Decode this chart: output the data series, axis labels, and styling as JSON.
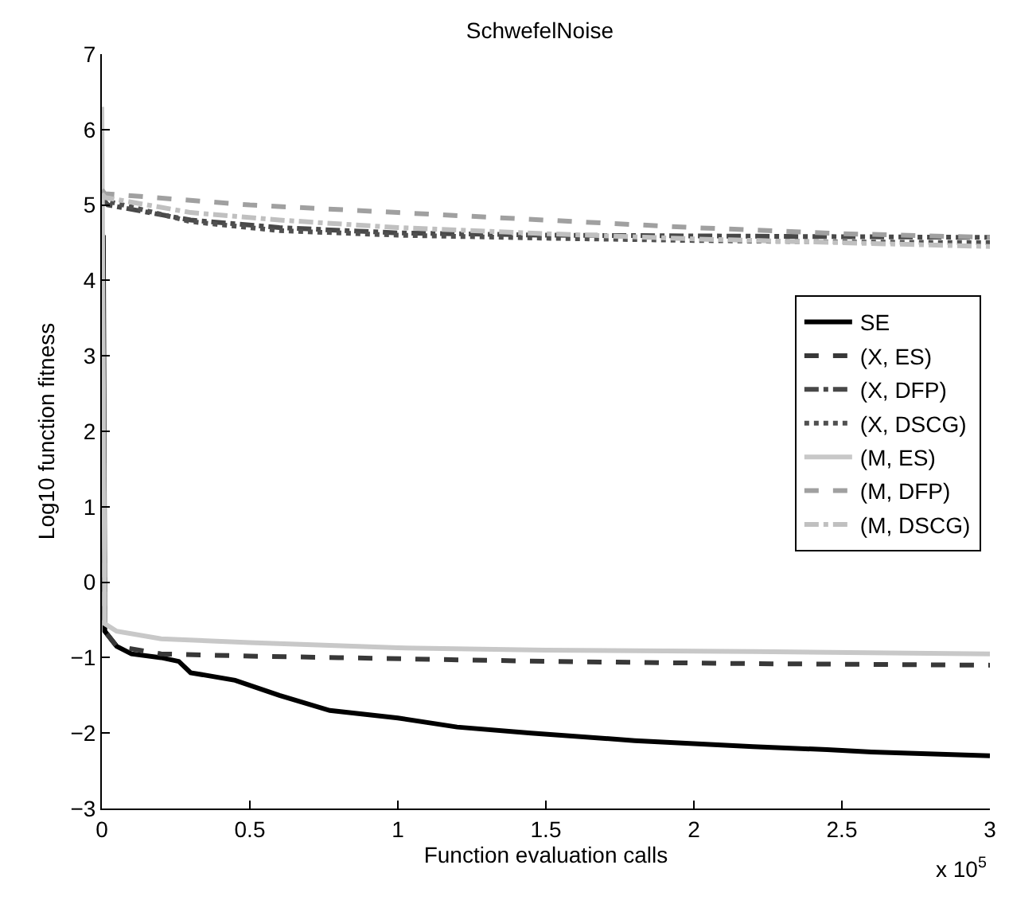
{
  "chart_data": {
    "type": "line",
    "title": "SchwefelNoise",
    "xlabel": "Function evaluation calls",
    "ylabel": "Log10 function fitness",
    "annotations": [
      "x 10$^{5}$"
    ],
    "xlim": [
      0,
      3
    ],
    "xticks": [
      0,
      0.5,
      1,
      1.5,
      2,
      2.5,
      3
    ],
    "ylim": [
      -3,
      7
    ],
    "yticks": [
      -3,
      -2,
      -1,
      0,
      1,
      2,
      3,
      4,
      5,
      6,
      7
    ],
    "grid": false,
    "legend": "right",
    "marker": "none",
    "series": [
      {
        "name": "SE",
        "color": "#000000",
        "line_style": "solid",
        "x": [
          0.005,
          0.01,
          0.05,
          0.1,
          0.2,
          0.26,
          0.3,
          0.45,
          0.6,
          0.77,
          1.0,
          1.2,
          1.45,
          1.8,
          2.2,
          2.45,
          2.6,
          3.0
        ],
        "values": [
          4.6,
          -0.65,
          -0.85,
          -0.95,
          -1.0,
          -1.05,
          -1.2,
          -1.3,
          -1.5,
          -1.7,
          -1.8,
          -1.92,
          -2.0,
          -2.1,
          -2.18,
          -2.22,
          -2.25,
          -2.3
        ]
      },
      {
        "name": "(X, ES)",
        "color": "#383838",
        "line_style": "dashed",
        "x": [
          0,
          0.01,
          0.05,
          0.2,
          0.5,
          0.8,
          1.5,
          2.2,
          3.0
        ],
        "values": [
          5.0,
          -0.65,
          -0.85,
          -0.95,
          -0.98,
          -1.0,
          -1.05,
          -1.08,
          -1.1
        ]
      },
      {
        "name": "(X, DFP)",
        "color": "#484848",
        "line_style": "dashdot",
        "x": [
          0,
          0.02,
          0.3,
          0.6,
          1.0,
          1.5,
          2.0,
          2.5,
          3.0
        ],
        "values": [
          5.1,
          5.0,
          4.8,
          4.7,
          4.63,
          4.6,
          4.59,
          4.58,
          4.57
        ]
      },
      {
        "name": "(X, DSCG)",
        "color": "#505050",
        "line_style": "dotted",
        "x": [
          0,
          0.02,
          0.3,
          0.6,
          1.0,
          1.5,
          2.0,
          2.5,
          3.0
        ],
        "values": [
          5.1,
          5.05,
          4.78,
          4.66,
          4.6,
          4.56,
          4.53,
          4.51,
          4.5
        ]
      },
      {
        "name": "(M, ES)",
        "color": "#c8c8c8",
        "line_style": "solid",
        "x": [
          0,
          0.01,
          0.05,
          0.2,
          0.5,
          1.0,
          1.5,
          2.2,
          3.0
        ],
        "values": [
          6.3,
          -0.55,
          -0.65,
          -0.75,
          -0.8,
          -0.87,
          -0.9,
          -0.92,
          -0.95
        ]
      },
      {
        "name": "(M, DFP)",
        "color": "#a0a0a0",
        "line_style": "dashed",
        "x": [
          0,
          0.01,
          0.5,
          1.0,
          1.5,
          2.0,
          2.5,
          3.0
        ],
        "values": [
          5.2,
          5.15,
          5.0,
          4.9,
          4.8,
          4.7,
          4.62,
          4.57
        ]
      },
      {
        "name": "(M, DSCG)",
        "color": "#c0c0c0",
        "line_style": "dashdot",
        "x": [
          0,
          0.01,
          0.3,
          0.6,
          1.0,
          1.5,
          2.0,
          2.5,
          3.0
        ],
        "values": [
          5.15,
          5.1,
          4.9,
          4.8,
          4.7,
          4.62,
          4.55,
          4.5,
          4.45
        ]
      }
    ]
  }
}
